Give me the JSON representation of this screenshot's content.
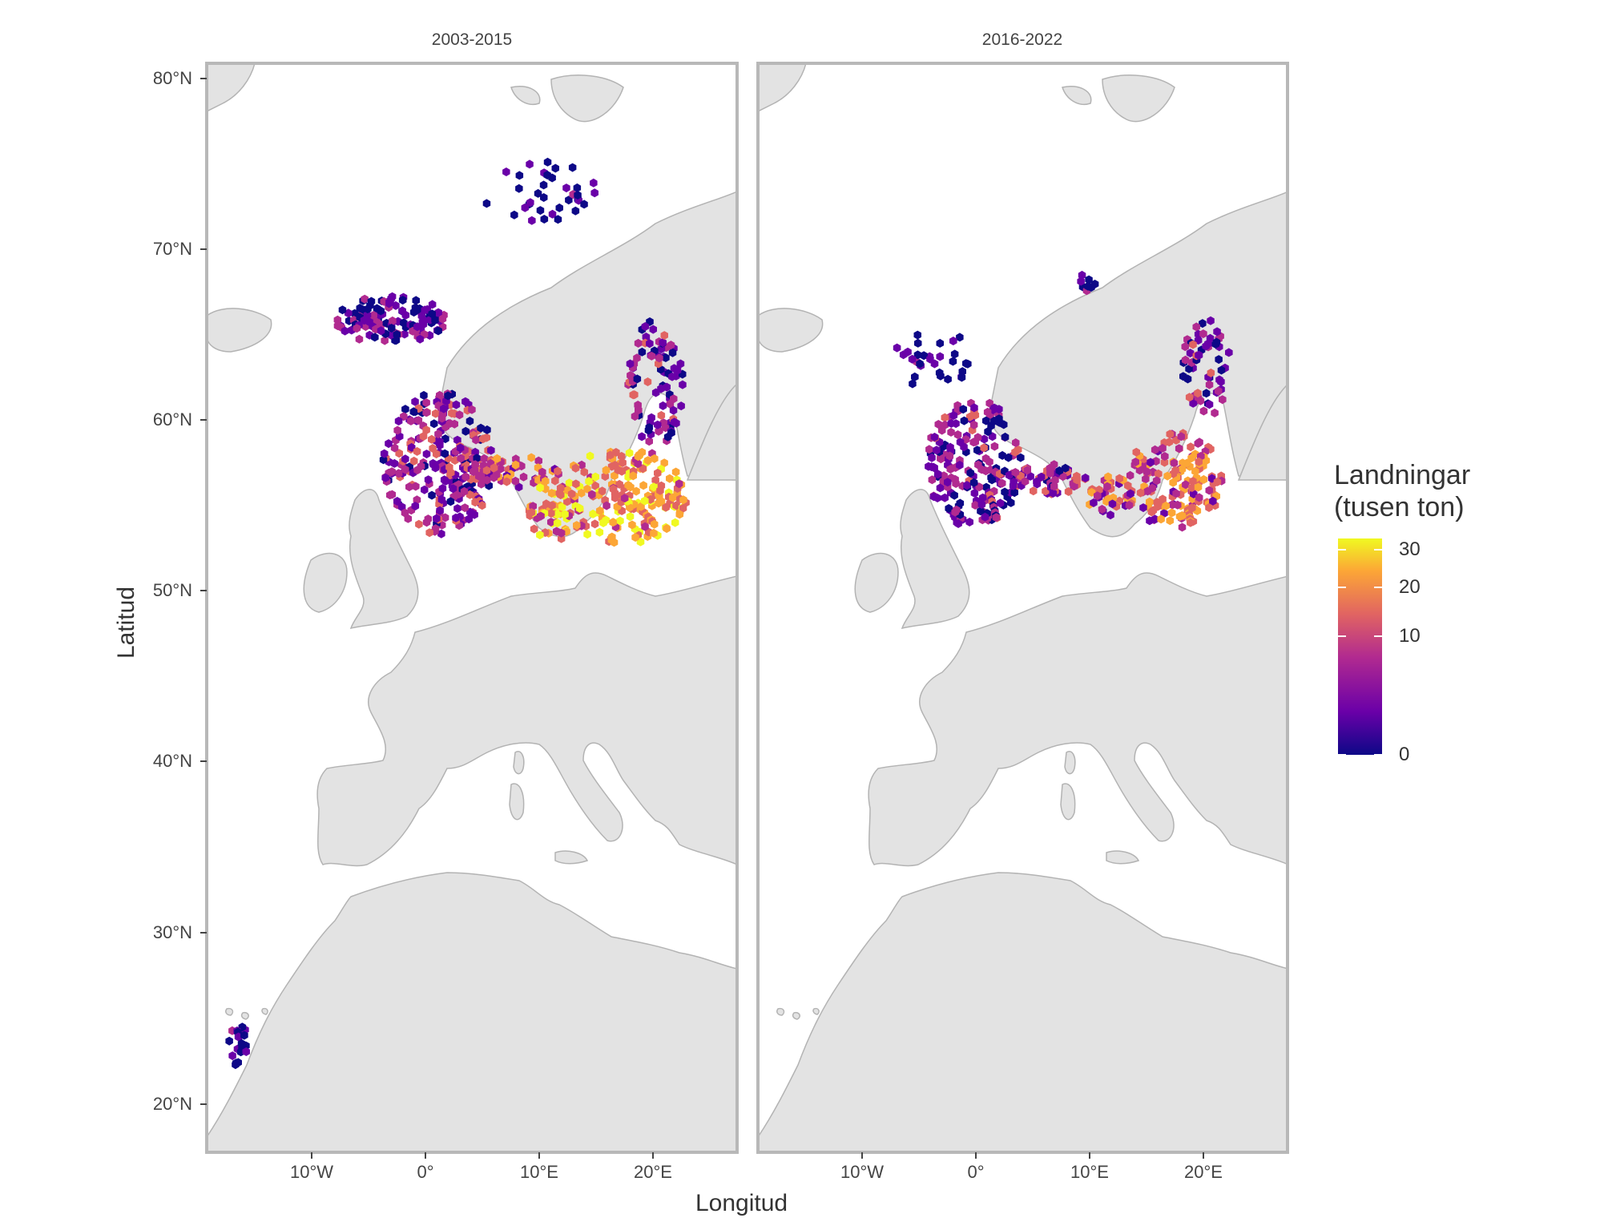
{
  "panels": [
    {
      "title": "2003-2015"
    },
    {
      "title": "2016-2022"
    }
  ],
  "axes": {
    "xlabel": "Longitud",
    "ylabel": "Latitud",
    "x_ticks": [
      "10°W",
      "0°",
      "10°E",
      "20°E"
    ],
    "y_ticks": [
      "80°N",
      "70°N",
      "60°N",
      "50°N",
      "40°N",
      "30°N",
      "20°N"
    ]
  },
  "legend": {
    "title_line1": "Landningar",
    "title_line2": "(tusen ton)",
    "labels": [
      "30",
      "20",
      "10",
      "0"
    ],
    "colors": [
      "#0d0887",
      "#6a00a8",
      "#b12a90",
      "#e16462",
      "#fca636",
      "#f0f921"
    ]
  },
  "colors": {
    "land": "#e3e3e3",
    "border": "#b3b3b3",
    "panel_frame": "#b8b8b8"
  }
}
